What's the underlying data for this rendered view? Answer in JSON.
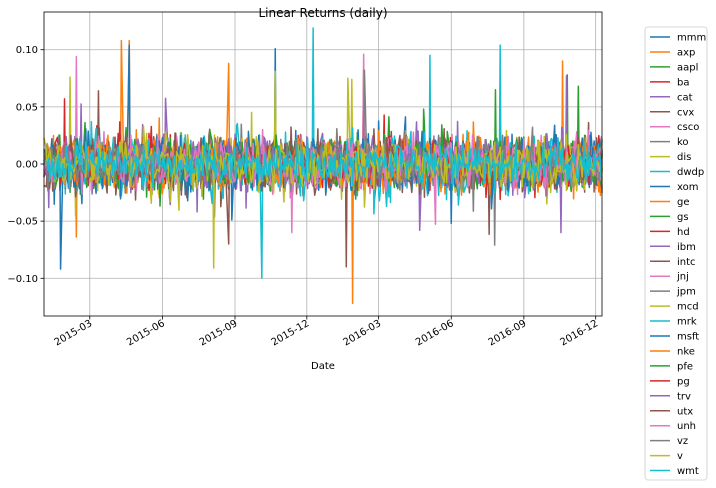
{
  "chart_data": {
    "type": "line",
    "title": "Linear Returns (daily)",
    "xlabel": "Date",
    "ylabel": "",
    "x_range": [
      "2015-01-02",
      "2016-12-09"
    ],
    "ylim": [
      -0.133,
      0.133
    ],
    "x_ticks": [
      "2015-03",
      "2015-06",
      "2015-09",
      "2015-12",
      "2016-03",
      "2016-06",
      "2016-09",
      "2016-12"
    ],
    "y_ticks": [
      -0.1,
      -0.05,
      0.0,
      0.05,
      0.1
    ],
    "y_tick_labels": [
      "−0.10",
      "−0.05",
      "0.00",
      "0.05",
      "0.10"
    ],
    "grid": true,
    "legend_position": "outside-right",
    "series": [
      {
        "name": "mmm",
        "color": "#1f77b4",
        "std": 0.011,
        "extremes": []
      },
      {
        "name": "axp",
        "color": "#ff7f0e",
        "std": 0.013,
        "extremes": [
          [
            "2015-04-20",
            0.108
          ],
          [
            "2015-02-12",
            -0.064
          ],
          [
            "2016-10-20",
            0.09
          ],
          [
            "2015-08-24",
            0.088
          ]
        ]
      },
      {
        "name": "aapl",
        "color": "#2ca02c",
        "std": 0.014,
        "extremes": [
          [
            "2016-04-27",
            0.048
          ],
          [
            "2016-10-26",
            0.078
          ]
        ]
      },
      {
        "name": "ba",
        "color": "#d62728",
        "std": 0.012,
        "extremes": [
          [
            "2015-01-28",
            0.057
          ]
        ]
      },
      {
        "name": "cat",
        "color": "#9467bd",
        "std": 0.013,
        "extremes": [
          [
            "2016-01-20",
            -0.064
          ],
          [
            "2016-04-22",
            -0.058
          ],
          [
            "2016-10-25",
            0.077
          ]
        ]
      },
      {
        "name": "cvx",
        "color": "#8c564b",
        "std": 0.014,
        "extremes": [
          [
            "2015-08-24",
            -0.07
          ],
          [
            "2016-01-20",
            -0.09
          ],
          [
            "2016-02-11",
            0.082
          ]
        ]
      },
      {
        "name": "csco",
        "color": "#e377c2",
        "std": 0.013,
        "extremes": [
          [
            "2015-02-12",
            0.094
          ],
          [
            "2016-02-11",
            0.096
          ],
          [
            "2015-11-12",
            -0.06
          ]
        ]
      },
      {
        "name": "ko",
        "color": "#7f7f7f",
        "std": 0.009,
        "extremes": [
          [
            "2016-07-26",
            -0.071
          ]
        ]
      },
      {
        "name": "dis",
        "color": "#bcbd22",
        "std": 0.012,
        "extremes": [
          [
            "2015-02-04",
            0.076
          ],
          [
            "2015-08-05",
            -0.091
          ],
          [
            "2016-01-27",
            0.074
          ]
        ]
      },
      {
        "name": "dwdp",
        "color": "#17becf",
        "std": 0.016,
        "extremes": [
          [
            "2015-12-09",
            0.119
          ],
          [
            "2015-10-05",
            -0.1
          ],
          [
            "2016-08-02",
            0.104
          ],
          [
            "2016-05-05",
            0.095
          ]
        ]
      },
      {
        "name": "xom",
        "color": "#1f77b4",
        "std": 0.012,
        "extremes": [
          [
            "2015-01-23",
            -0.092
          ],
          [
            "2015-04-20",
            0.104
          ],
          [
            "2015-10-22",
            0.101
          ]
        ]
      },
      {
        "name": "ge",
        "color": "#ff7f0e",
        "std": 0.011,
        "extremes": [
          [
            "2016-01-28",
            -0.122
          ],
          [
            "2015-04-10",
            0.108
          ]
        ]
      },
      {
        "name": "gs",
        "color": "#2ca02c",
        "std": 0.013,
        "extremes": [
          [
            "2016-11-09",
            0.068
          ],
          [
            "2016-07-27",
            0.065
          ]
        ]
      },
      {
        "name": "hd",
        "color": "#d62728",
        "std": 0.011,
        "extremes": []
      },
      {
        "name": "ibm",
        "color": "#9467bd",
        "std": 0.012,
        "extremes": [
          [
            "2016-10-18",
            -0.06
          ]
        ]
      },
      {
        "name": "intc",
        "color": "#8c564b",
        "std": 0.014,
        "extremes": [
          [
            "2015-03-12",
            0.064
          ]
        ]
      },
      {
        "name": "jnj",
        "color": "#e377c2",
        "std": 0.009,
        "extremes": []
      },
      {
        "name": "jpm",
        "color": "#7f7f7f",
        "std": 0.012,
        "extremes": [
          [
            "2016-02-12",
            0.082
          ]
        ]
      },
      {
        "name": "mcd",
        "color": "#bcbd22",
        "std": 0.011,
        "extremes": [
          [
            "2015-10-22",
            0.081
          ],
          [
            "2016-01-22",
            0.075
          ]
        ]
      },
      {
        "name": "mrk",
        "color": "#17becf",
        "std": 0.011,
        "extremes": []
      },
      {
        "name": "msft",
        "color": "#1f77b4",
        "std": 0.014,
        "extremes": []
      },
      {
        "name": "nke",
        "color": "#ff7f0e",
        "std": 0.012,
        "extremes": []
      },
      {
        "name": "pfe",
        "color": "#2ca02c",
        "std": 0.01,
        "extremes": []
      },
      {
        "name": "pg",
        "color": "#d62728",
        "std": 0.009,
        "extremes": []
      },
      {
        "name": "trv",
        "color": "#9467bd",
        "std": 0.01,
        "extremes": []
      },
      {
        "name": "utx",
        "color": "#8c564b",
        "std": 0.01,
        "extremes": []
      },
      {
        "name": "unh",
        "color": "#e377c2",
        "std": 0.012,
        "extremes": []
      },
      {
        "name": "vz",
        "color": "#7f7f7f",
        "std": 0.009,
        "extremes": []
      },
      {
        "name": "v",
        "color": "#bcbd22",
        "std": 0.012,
        "extremes": []
      },
      {
        "name": "wmt",
        "color": "#17becf",
        "std": 0.01,
        "extremes": []
      }
    ]
  }
}
